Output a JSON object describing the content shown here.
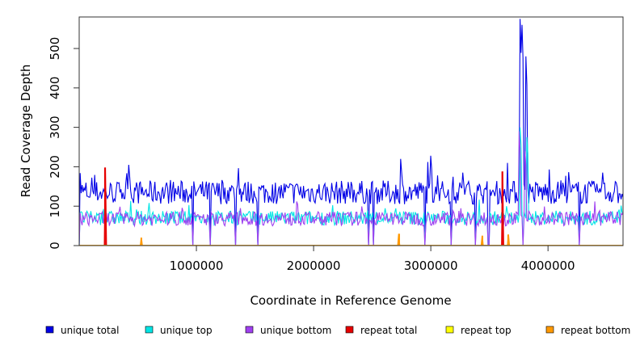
{
  "chart_data": {
    "type": "line",
    "title": "",
    "xlabel": "Coordinate in Reference Genome",
    "ylabel": "Read Coverage Depth",
    "xlim": [
      0,
      4640000
    ],
    "ylim": [
      0,
      580
    ],
    "x_ticks": [
      1000000,
      2000000,
      3000000,
      4000000
    ],
    "x_tick_labels": [
      "1000000",
      "2000000",
      "3000000",
      "4000000"
    ],
    "y_ticks": [
      0,
      100,
      200,
      300,
      400,
      500
    ],
    "y_tick_labels": [
      "0",
      "100",
      "200",
      "300",
      "400",
      "500"
    ],
    "grid": false,
    "legend_position": "bottom",
    "series": [
      {
        "name": "unique total",
        "color": "#0000e6",
        "baseline": 135,
        "jitter": 30,
        "spikes": [
          [
            420000,
            205
          ],
          [
            2740000,
            220
          ],
          [
            3000000,
            228
          ],
          [
            3270000,
            185
          ],
          [
            3760000,
            575
          ],
          [
            3780000,
            560
          ],
          [
            3810000,
            480
          ],
          [
            4470000,
            185
          ]
        ]
      },
      {
        "name": "unique top",
        "color": "#00e5e5",
        "baseline": 70,
        "jitter": 18,
        "spikes": [
          [
            3760000,
            300
          ],
          [
            3820000,
            275
          ]
        ]
      },
      {
        "name": "unique bottom",
        "color": "#a040f0",
        "baseline": 68,
        "jitter": 18,
        "spikes": [
          [
            3750000,
            290
          ],
          [
            3800000,
            240
          ]
        ]
      },
      {
        "name": "repeat total",
        "color": "#e60000",
        "baseline": 0,
        "jitter": 0,
        "spikes": [
          [
            220000,
            198
          ],
          [
            3610000,
            188
          ]
        ]
      },
      {
        "name": "repeat top",
        "color": "#ffff00",
        "baseline": 0,
        "jitter": 0,
        "spikes": []
      },
      {
        "name": "repeat bottom",
        "color": "#ff9900",
        "baseline": 0,
        "jitter": 0,
        "spikes": [
          [
            530000,
            20
          ],
          [
            2730000,
            30
          ],
          [
            3440000,
            25
          ],
          [
            3660000,
            28
          ]
        ]
      }
    ]
  }
}
